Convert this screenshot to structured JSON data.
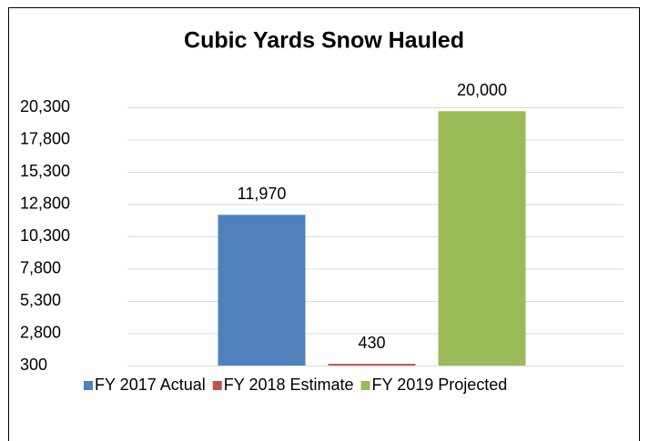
{
  "chart_data": {
    "type": "bar",
    "title": "Cubic Yards Snow Hauled",
    "categories": [
      null
    ],
    "series": [
      {
        "name": "FY 2017 Actual",
        "color": "#4f81bd",
        "values": [
          11970
        ],
        "value_labels": [
          "11,970"
        ]
      },
      {
        "name": "FY 2018 Estimate",
        "color": "#c0504d",
        "values": [
          430
        ],
        "value_labels": [
          "430"
        ]
      },
      {
        "name": "FY 2019 Projected",
        "color": "#9bbb59",
        "values": [
          20000
        ],
        "value_labels": [
          "20,000"
        ]
      }
    ],
    "ylim": [
      300,
      20300
    ],
    "yticks": [
      300,
      {
        "value": 2800,
        "label": "2,800"
      },
      {
        "value": 5300,
        "label": "5,300"
      },
      {
        "value": 7800,
        "label": "7,800"
      },
      {
        "value": 10300,
        "label": "10,300"
      },
      {
        "value": 12800,
        "label": "12,800"
      },
      {
        "value": 15300,
        "label": "15,300"
      },
      {
        "value": 17800,
        "label": "17,800"
      },
      {
        "value": 20300,
        "label": "20,300"
      }
    ],
    "grid": true,
    "legend": "bottom"
  }
}
